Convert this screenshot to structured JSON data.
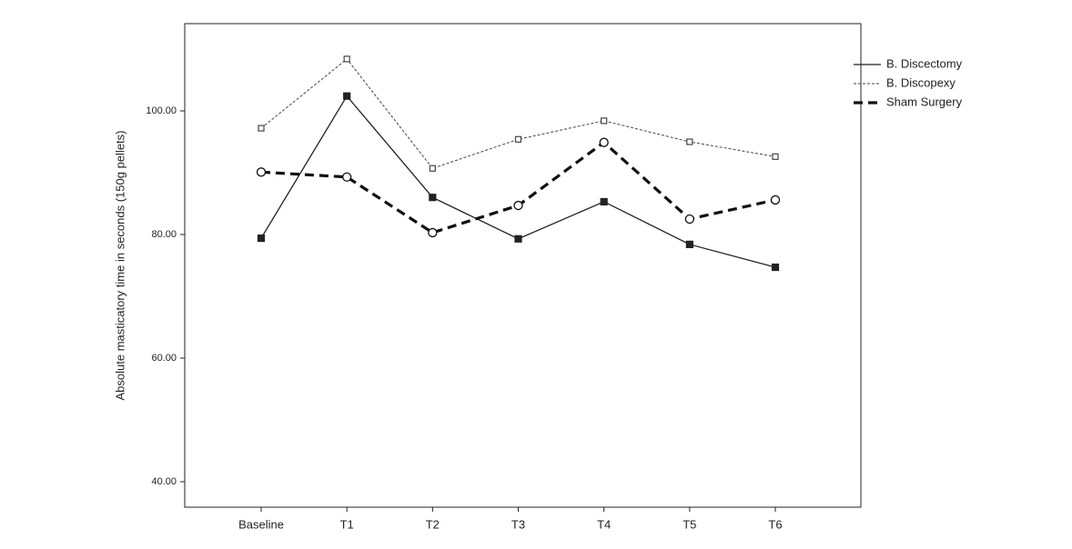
{
  "chart_data": {
    "type": "line",
    "y_label": "Absolute masticatory time in seconds (150g pellets)",
    "categories": [
      "Baseline",
      "T1",
      "T2",
      "T3",
      "T4",
      "T5",
      "T6"
    ],
    "series": [
      {
        "name": "B. Discectomy",
        "color": "#222222",
        "line_style": "solid",
        "marker": "filled-square",
        "values": [
          79.4,
          102.4,
          86.0,
          79.3,
          85.3,
          78.4,
          74.7
        ]
      },
      {
        "name": "B. Discopexy",
        "color": "#444444",
        "line_style": "dotted",
        "marker": "open-square",
        "values": [
          97.2,
          108.4,
          90.7,
          95.4,
          98.4,
          95.0,
          92.6
        ]
      },
      {
        "name": "Sham Surgery",
        "color": "#111111",
        "line_style": "dashed",
        "marker": "open-circle",
        "values": [
          90.1,
          89.3,
          80.3,
          84.7,
          94.9,
          82.5,
          85.6
        ]
      }
    ],
    "ylim": [
      35.88,
      114.12
    ],
    "yticks": [
      {
        "value": 40,
        "label": "40.00"
      },
      {
        "value": 60,
        "label": "60.00"
      },
      {
        "value": 80,
        "label": "80.00"
      },
      {
        "value": 100,
        "label": "100.00"
      }
    ],
    "grid": false,
    "legend": "right"
  }
}
